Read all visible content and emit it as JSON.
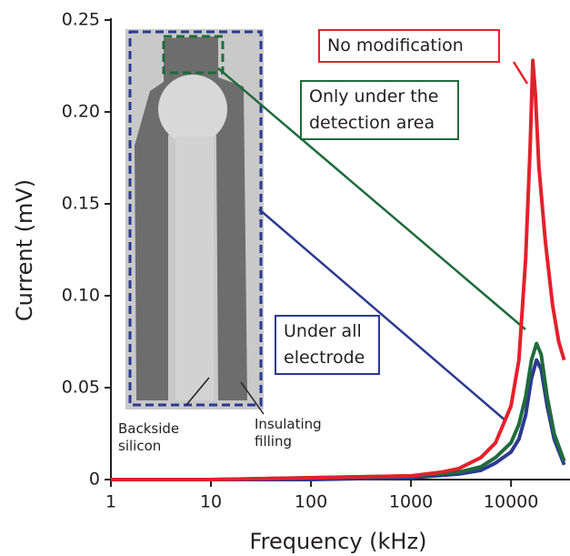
{
  "chart_data": {
    "type": "line",
    "x_label": "Frequency (kHz)",
    "y_label": "Current (mV)",
    "xscale": "log",
    "xlim": [
      1,
      35000
    ],
    "ylim": [
      0,
      0.25
    ],
    "xticks": [
      1,
      10,
      100,
      1000,
      10000
    ],
    "yticks": [
      0,
      0.05,
      {
        "value": 0.1,
        "label": "0.10"
      },
      0.15,
      {
        "value": 0.2,
        "label": "0.20"
      },
      0.25
    ],
    "series": [
      {
        "name": "No modification",
        "color": "#e3212b",
        "x": [
          1,
          10,
          100,
          1000,
          2000,
          3000,
          5000,
          7000,
          10000,
          12000,
          14000,
          15500,
          16500,
          17500,
          19000,
          22000,
          26000,
          30000,
          34000
        ],
        "values": [
          0,
          0,
          0.001,
          0.002,
          0.004,
          0.006,
          0.012,
          0.02,
          0.04,
          0.065,
          0.12,
          0.18,
          0.228,
          0.21,
          0.17,
          0.13,
          0.095,
          0.075,
          0.065
        ]
      },
      {
        "name": "Only under the detection area",
        "color": "#1f6b3b",
        "x": [
          1,
          10,
          100,
          1000,
          3000,
          5000,
          7000,
          10000,
          12000,
          14000,
          16000,
          18000,
          20000,
          23000,
          27000,
          34000
        ],
        "values": [
          0,
          0,
          0.001,
          0.002,
          0.004,
          0.007,
          0.012,
          0.02,
          0.03,
          0.045,
          0.065,
          0.074,
          0.068,
          0.045,
          0.025,
          0.01
        ]
      },
      {
        "name": "Under all electrode",
        "color": "#2b3a8f",
        "x": [
          1,
          10,
          100,
          1000,
          3000,
          5000,
          7000,
          10000,
          12000,
          14000,
          16000,
          18000,
          20000,
          23000,
          27000,
          34000
        ],
        "values": [
          0,
          0,
          0,
          0.001,
          0.003,
          0.005,
          0.009,
          0.015,
          0.022,
          0.035,
          0.055,
          0.065,
          0.06,
          0.04,
          0.022,
          0.008
        ]
      }
    ],
    "inset_labels": [
      "Backside silicon",
      "Insulating filling"
    ]
  }
}
